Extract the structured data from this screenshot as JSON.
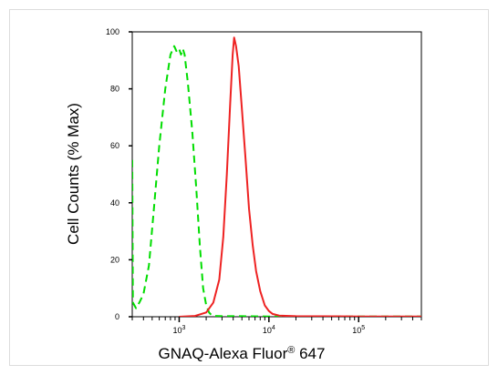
{
  "chart_data": {
    "type": "line",
    "title": "",
    "xlabel": "GNAQ-Alexa Fluor",
    "xlabel_superscript": "®",
    "xlabel_suffix": " 647",
    "ylabel": "Cell Counts (% Max)",
    "xscale": "log",
    "xlim": [
      300,
      500000
    ],
    "ylim": [
      0,
      100
    ],
    "y_ticks": [
      0,
      20,
      40,
      60,
      80,
      100
    ],
    "y_tick_labels": [
      "0",
      "20",
      "40",
      "60",
      "80",
      "100"
    ],
    "x_ticks": [
      1000,
      10000,
      100000
    ],
    "x_tick_labels": [
      {
        "base": "10",
        "exp": "3"
      },
      {
        "base": "10",
        "exp": "4"
      },
      {
        "base": "10",
        "exp": "5"
      }
    ],
    "grid": false,
    "legend": "none",
    "series": [
      {
        "color": "#00dd00",
        "style": "dashed",
        "x": [
          300,
          305,
          330,
          360,
          400,
          460,
          530,
          600,
          700,
          800,
          880,
          940,
          1000,
          1050,
          1100,
          1150,
          1250,
          1400,
          1550,
          1700,
          1850,
          2000,
          2150,
          2300,
          2500,
          3000,
          5000,
          10000,
          50000,
          200000,
          500000
        ],
        "y": [
          55,
          5,
          3,
          5,
          8,
          18,
          40,
          60,
          80,
          92,
          95,
          93,
          94,
          92,
          94,
          92,
          82,
          65,
          45,
          25,
          10,
          4,
          1.5,
          0.5,
          0.3,
          0.2,
          0.2,
          0.1,
          0.1,
          0.1,
          0.1
        ]
      },
      {
        "color": "#ee2222",
        "style": "solid",
        "x": [
          1000,
          1500,
          2000,
          2400,
          2800,
          3100,
          3400,
          3700,
          3950,
          4100,
          4300,
          4600,
          5000,
          5500,
          6000,
          6600,
          7200,
          8000,
          9000,
          10000,
          11000,
          13000,
          20000,
          100000,
          500000
        ],
        "y": [
          0,
          0.3,
          1.5,
          5,
          13,
          28,
          50,
          75,
          92,
          98,
          95,
          88,
          73,
          55,
          38,
          25,
          16,
          9,
          4,
          2,
          1,
          0.4,
          0.2,
          0.1,
          0.1
        ]
      }
    ]
  }
}
